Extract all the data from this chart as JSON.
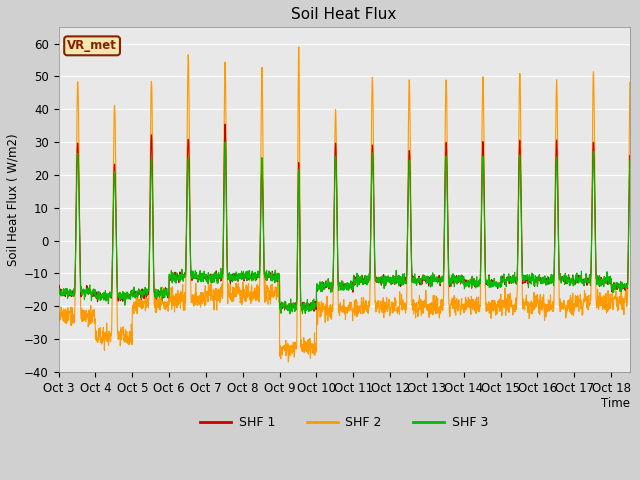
{
  "title": "Soil Heat Flux",
  "ylabel": "Soil Heat Flux ( W/m2)",
  "xlabel": "Time",
  "annotation": "VR_met",
  "ylim": [
    -40,
    65
  ],
  "background_color": "#d0d0d0",
  "plot_bg_color": "#e8e8e8",
  "colors": {
    "SHF 1": "#cc0000",
    "SHF 2": "#ff9900",
    "SHF 3": "#00bb00"
  },
  "tick_labels": [
    "Oct 3",
    "Oct 4",
    "Oct 5",
    "Oct 6",
    "Oct 7",
    "Oct 8",
    "Oct 9",
    "Oct 10",
    "Oct 11",
    "Oct 12",
    "Oct 13",
    "Oct 14",
    "Oct 15",
    "Oct 16",
    "Oct 17",
    "Oct 18"
  ],
  "n_days": 16,
  "pts_per_day": 144,
  "figsize": [
    6.4,
    4.8
  ],
  "dpi": 100
}
